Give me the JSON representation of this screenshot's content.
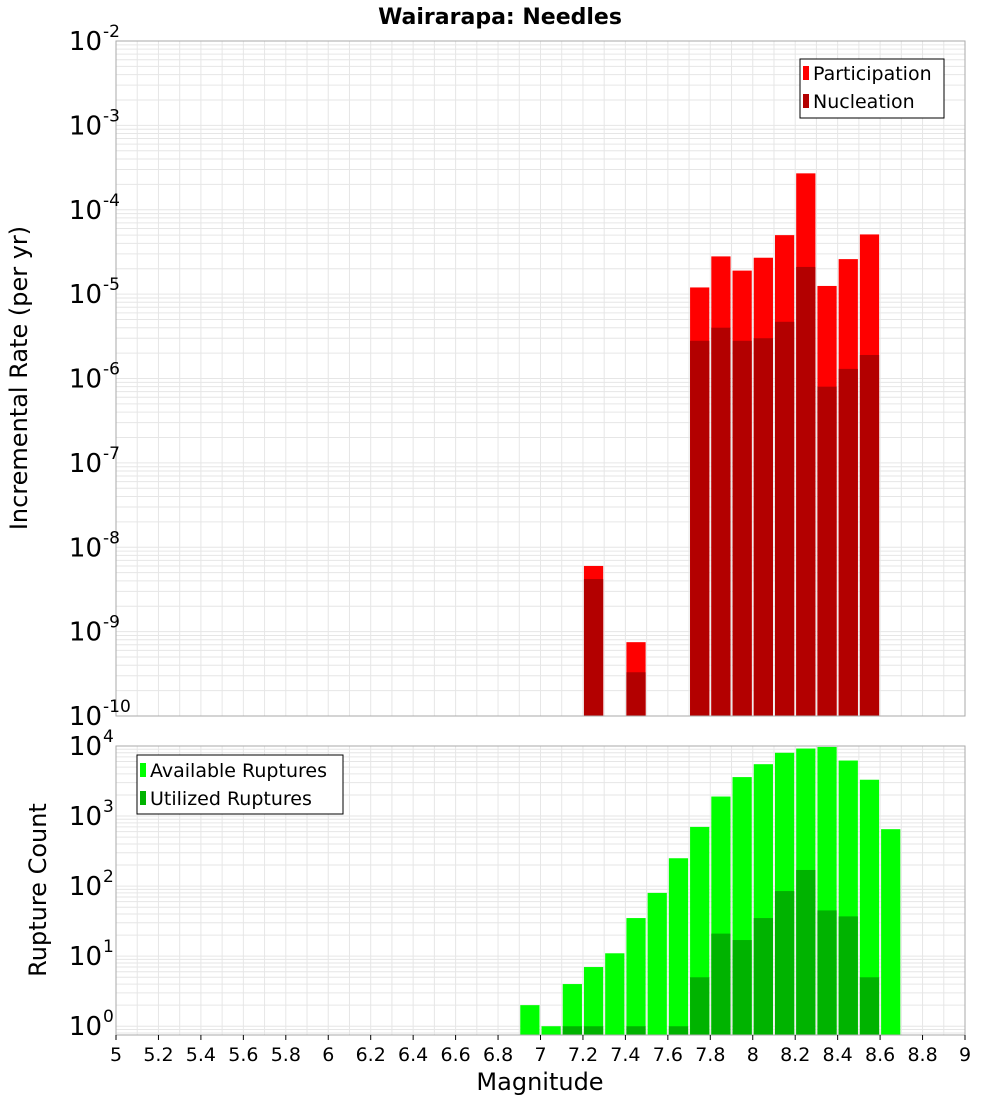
{
  "title": "Wairarapa: Needles",
  "colors": {
    "participation": "#ff0000",
    "nucleation": "#b30000",
    "available": "#00ff00",
    "utilized": "#00b300",
    "grid": "#e6e6e6",
    "frame": "#aaaaaa"
  },
  "chart_data": [
    {
      "type": "bar",
      "title": "Wairarapa: Needles",
      "xlabel": "Magnitude",
      "ylabel": "Incremental Rate (per yr)",
      "yscale": "log",
      "xlim": [
        5,
        9
      ],
      "ylim": [
        1e-10,
        0.01
      ],
      "y_ticks": [
        {
          "base": "10",
          "exp": "-10"
        },
        {
          "base": "10",
          "exp": "-9"
        },
        {
          "base": "10",
          "exp": "-8"
        },
        {
          "base": "10",
          "exp": "-7"
        },
        {
          "base": "10",
          "exp": "-6"
        },
        {
          "base": "10",
          "exp": "-5"
        },
        {
          "base": "10",
          "exp": "-4"
        },
        {
          "base": "10",
          "exp": "-3"
        },
        {
          "base": "10",
          "exp": "-2"
        }
      ],
      "grid": true,
      "legend_position": "top-right",
      "series": [
        {
          "name": "Participation",
          "x": [
            7.25,
            7.45,
            7.75,
            7.85,
            7.95,
            8.05,
            8.15,
            8.25,
            8.35,
            8.45,
            8.55
          ],
          "values": [
            6e-09,
            7.5e-10,
            1.2e-05,
            2.8e-05,
            1.9e-05,
            2.7e-05,
            5e-05,
            0.00027,
            1.25e-05,
            2.6e-05,
            5.1e-05
          ]
        },
        {
          "name": "Nucleation",
          "x": [
            7.25,
            7.45,
            7.75,
            7.85,
            7.95,
            8.05,
            8.15,
            8.25,
            8.35,
            8.45,
            8.55
          ],
          "values": [
            4.2e-09,
            3.3e-10,
            2.8e-06,
            4e-06,
            2.8e-06,
            3e-06,
            4.7e-06,
            2.1e-05,
            8e-07,
            1.3e-06,
            1.9e-06
          ]
        }
      ]
    },
    {
      "type": "bar",
      "xlabel": "Magnitude",
      "ylabel": "Rupture Count",
      "yscale": "log",
      "xlim": [
        5,
        9
      ],
      "ylim": [
        0.75,
        10000
      ],
      "x_ticks": [
        "5",
        "5.2",
        "5.4",
        "5.6",
        "5.8",
        "6",
        "6.2",
        "6.4",
        "6.6",
        "6.8",
        "7",
        "7.2",
        "7.4",
        "7.6",
        "7.8",
        "8",
        "8.2",
        "8.4",
        "8.6",
        "8.8",
        "9"
      ],
      "y_ticks": [
        {
          "base": "10",
          "exp": "0"
        },
        {
          "base": "10",
          "exp": "1"
        },
        {
          "base": "10",
          "exp": "2"
        },
        {
          "base": "10",
          "exp": "3"
        },
        {
          "base": "10",
          "exp": "4"
        }
      ],
      "grid": true,
      "legend_position": "top-left",
      "series": [
        {
          "name": "Available Ruptures",
          "x": [
            6.95,
            7.05,
            7.15,
            7.25,
            7.35,
            7.45,
            7.55,
            7.65,
            7.75,
            7.85,
            7.95,
            8.05,
            8.15,
            8.25,
            8.35,
            8.45,
            8.55,
            8.65
          ],
          "values": [
            2,
            1,
            4,
            7,
            11,
            35,
            80,
            250,
            700,
            1900,
            3600,
            5500,
            8000,
            9200,
            9700,
            6200,
            3300,
            650
          ]
        },
        {
          "name": "Utilized Ruptures",
          "x": [
            7.15,
            7.25,
            7.45,
            7.65,
            7.75,
            7.85,
            7.95,
            8.05,
            8.15,
            8.25,
            8.35,
            8.45,
            8.55
          ],
          "values": [
            1,
            1,
            1,
            1,
            5,
            21,
            17,
            35,
            85,
            170,
            45,
            37,
            5
          ]
        }
      ]
    }
  ]
}
